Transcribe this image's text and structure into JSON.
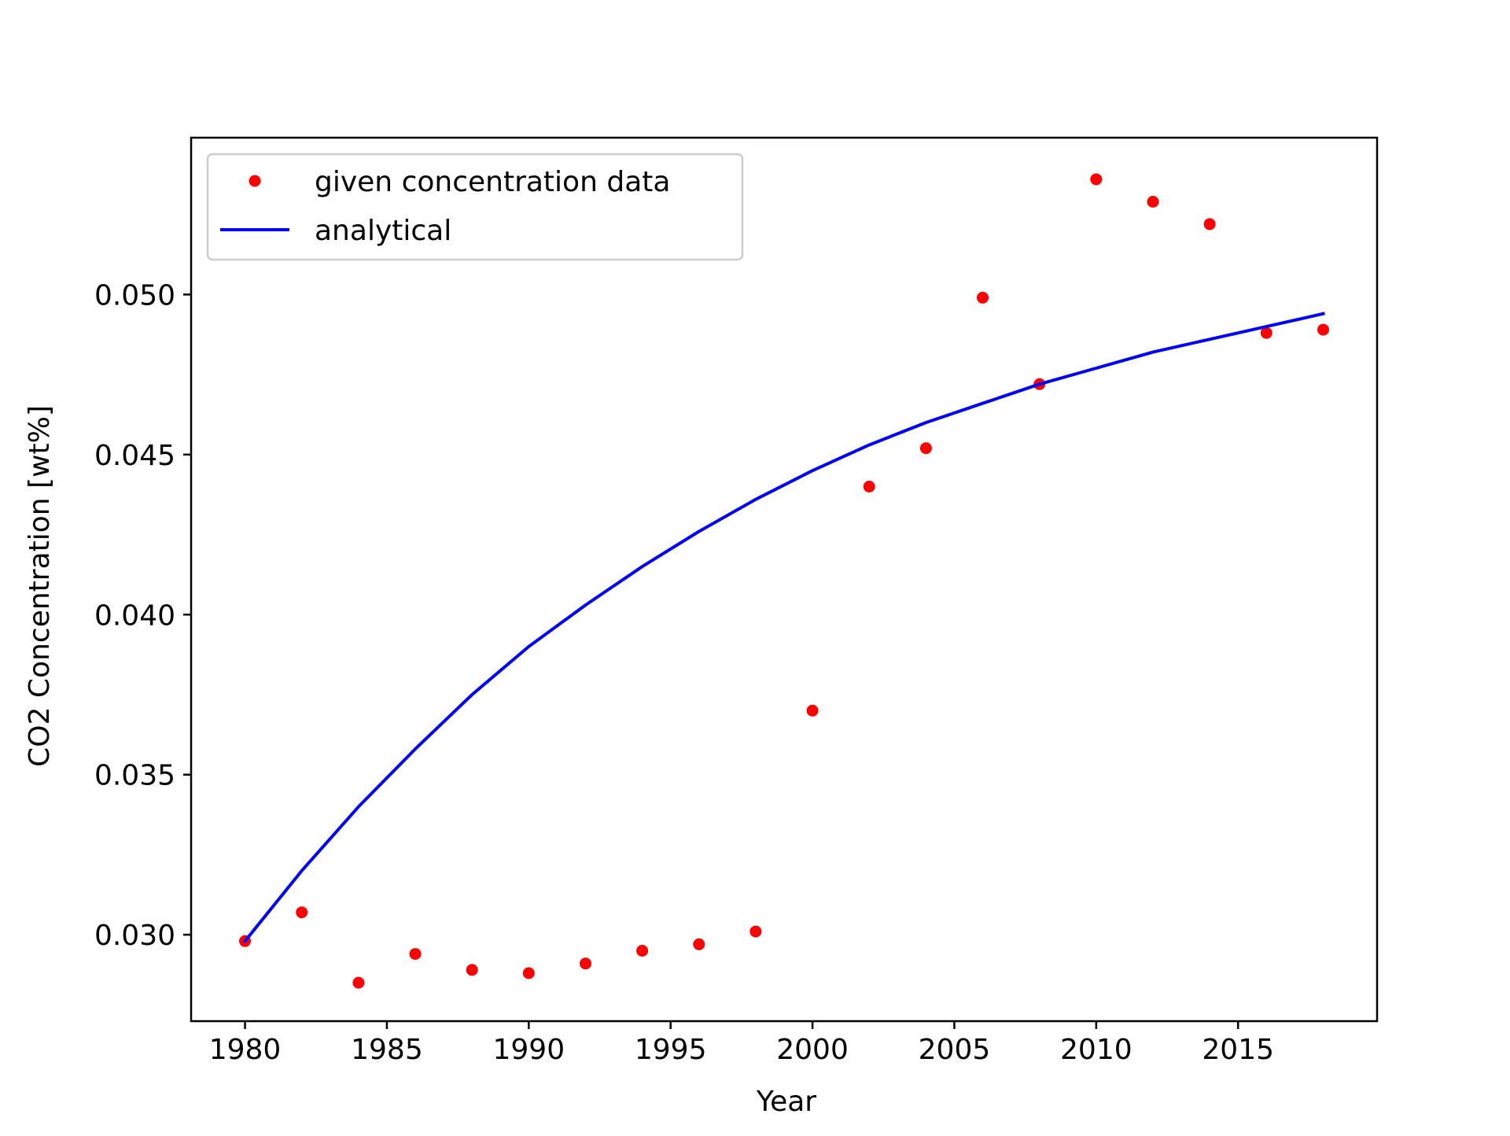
{
  "chart_data": {
    "type": "scatter",
    "title": "",
    "xlabel": "Year",
    "ylabel": "CO2 Concentration [wt%]",
    "xlim": [
      1978.1,
      2019.9
    ],
    "ylim": [
      0.0273,
      0.0549
    ],
    "xticks": [
      1980,
      1985,
      1990,
      1995,
      2000,
      2005,
      2010,
      2015
    ],
    "xtick_labels": [
      "1980",
      "1985",
      "1990",
      "1995",
      "2000",
      "2005",
      "2010",
      "2015"
    ],
    "yticks": [
      0.03,
      0.035,
      0.04,
      0.045,
      0.05
    ],
    "ytick_labels": [
      "0.030",
      "0.035",
      "0.040",
      "0.045",
      "0.050"
    ],
    "grid": false,
    "legend_position": "top-left",
    "series": [
      {
        "name": "given concentration data",
        "kind": "points",
        "color": "#ff0000",
        "x": [
          1980,
          1982,
          1984,
          1986,
          1988,
          1990,
          1992,
          1994,
          1996,
          1998,
          2000,
          2002,
          2004,
          2006,
          2008,
          2010,
          2012,
          2014,
          2016,
          2018
        ],
        "y": [
          0.0298,
          0.0307,
          0.0285,
          0.0294,
          0.0289,
          0.0288,
          0.0291,
          0.0295,
          0.0297,
          0.0301,
          0.037,
          0.044,
          0.0452,
          0.0499,
          0.0472,
          0.0536,
          0.0529,
          0.0522,
          0.0488,
          0.0489
        ]
      },
      {
        "name": "analytical",
        "kind": "line",
        "color": "#0000ff",
        "x": [
          1980,
          1982,
          1984,
          1986,
          1988,
          1990,
          1992,
          1994,
          1996,
          1998,
          2000,
          2002,
          2004,
          2006,
          2008,
          2010,
          2012,
          2014,
          2016,
          2018
        ],
        "y": [
          0.0298,
          0.032,
          0.034,
          0.0358,
          0.0375,
          0.039,
          0.0403,
          0.0415,
          0.0426,
          0.0436,
          0.0445,
          0.0453,
          0.046,
          0.0466,
          0.0472,
          0.0477,
          0.0482,
          0.0486,
          0.049,
          0.0494
        ]
      }
    ]
  }
}
